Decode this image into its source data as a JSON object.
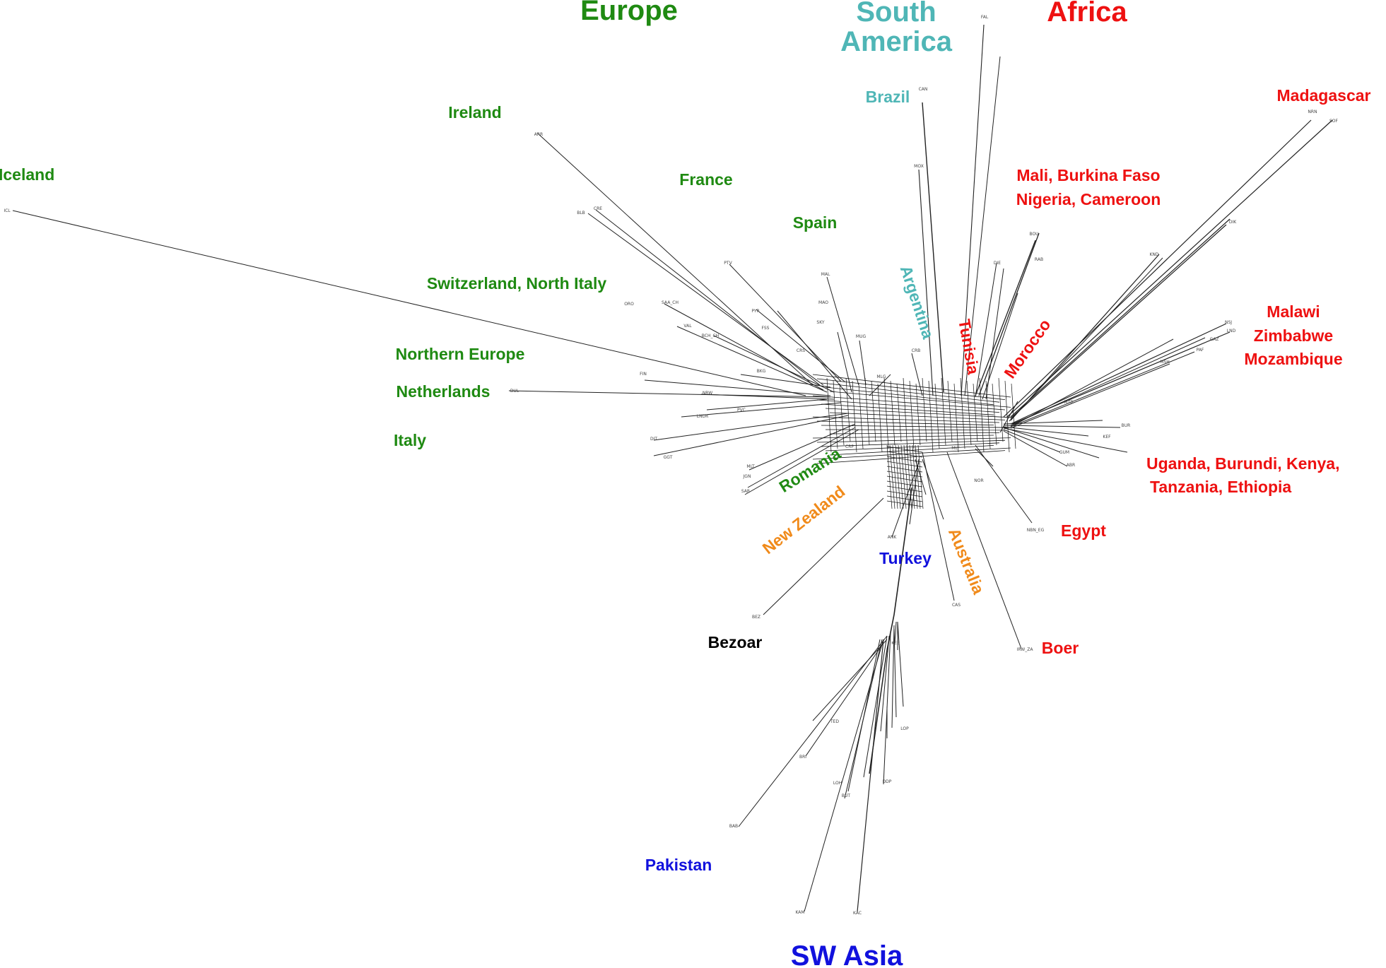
{
  "colors": {
    "europe": "#1f8a12",
    "south_america": "#4fb6b6",
    "africa": "#ee1111",
    "asia": "#1111dd",
    "oceania": "#f08a1a",
    "other": "#000000",
    "edge": "#222222"
  },
  "headers": {
    "europe": "Europe",
    "south_america_1": "South",
    "south_america_2": "America",
    "africa": "Africa",
    "sw_asia": "SW Asia"
  },
  "labels": {
    "iceland": "Iceland",
    "ireland": "Ireland",
    "france": "France",
    "spain": "Spain",
    "switzerland": "Switzerland, North Italy",
    "northern_europe": "Northern Europe",
    "netherlands": "Netherlands",
    "italy": "Italy",
    "romania": "Romania",
    "brazil": "Brazil",
    "argentina": "Argentina",
    "tunisia": "Tunisia",
    "morocco": "Morocco",
    "madagascar": "Madagascar",
    "west_africa_1": "Mali, Burkina Faso",
    "west_africa_2": "Nigeria, Cameroon",
    "southern_africa_1": "Malawi",
    "southern_africa_2": "Zimbabwe",
    "southern_africa_3": "Mozambique",
    "east_africa_1": "Uganda, Burundi, Kenya,",
    "east_africa_2": "Tanzania, Ethiopia",
    "egypt": "Egypt",
    "boer": "Boer",
    "new_zealand": "New Zealand",
    "australia": "Australia",
    "turkey": "Turkey",
    "bezoar": "Bezoar",
    "pakistan": "Pakistan"
  },
  "tips": {
    "ICL": "ICL",
    "ARR": "ARR",
    "CRE": "CRE",
    "BLB": "BLB",
    "PTV": "PTV",
    "PYR": "PYR",
    "FSS": "FSS",
    "ORO": "ORO",
    "SAA": "SAA_CH",
    "VAL": "VAL",
    "BCH": "BCH_CH",
    "CRS": "CRS",
    "FIN": "FIN",
    "DUL": "DUL",
    "NRW": "NRW",
    "LNDR": "LNDR",
    "PVC": "PVC",
    "DIT": "DIT",
    "GGT": "GGT",
    "MLT": "MLT",
    "JGN": "JGN",
    "SAR": "SAR",
    "BKG": "BKG",
    "CRP": "CRP",
    "MAL": "MAL",
    "MAO": "MAO",
    "SKY": "SKY",
    "MUG": "MUG",
    "MLG": "MLG",
    "CAN": "CAN",
    "MOX": "MOX",
    "CRB": "CRB",
    "FAL": "FAL",
    "DIE": "DIE",
    "RAB": "RAB",
    "BOU": "BOU",
    "NRN": "NRN",
    "SOF": "SOF",
    "DIK": "DIK",
    "KND": "KND",
    "NSJ": "NSJ",
    "LND": "LND",
    "GAZ": "GAZ",
    "PAF": "PAF",
    "MSH": "MSH",
    "MTB": "MTB",
    "KEF": "KEF",
    "BUR": "BUR",
    "ABR": "ABR",
    "GUM": "GUM",
    "NBN": "NBN_EG",
    "IRW": "IRW_ZA",
    "BEZ": "BEZ",
    "ANK": "ANK",
    "CAS": "CAS",
    "MLY": "MLY",
    "NOR": "NOR",
    "KES": "KES",
    "TED": "TED",
    "BRI": "BRI",
    "LOH": "LOH",
    "BUT": "BUT",
    "DDP": "DDP",
    "LOP": "LOP",
    "BAB": "BAB",
    "KAM": "KAM",
    "KAC": "KAC"
  }
}
